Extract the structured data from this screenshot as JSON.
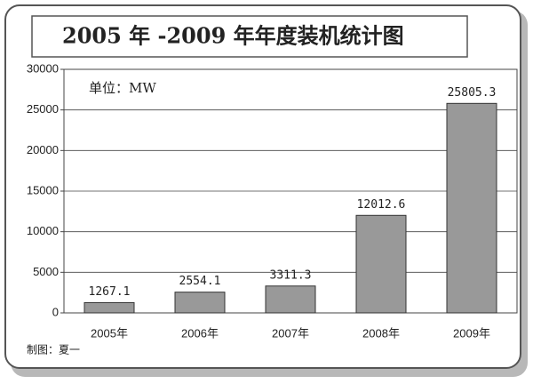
{
  "chart_data": {
    "type": "bar",
    "title": "2005 年 -2009 年年度装机统计图",
    "annotation": "单位：MW",
    "footer": "制图：夏一",
    "categories": [
      "2005年",
      "2006年",
      "2007年",
      "2008年",
      "2009年"
    ],
    "values": [
      1267.1,
      2554.1,
      3311.3,
      12012.6,
      25805.3
    ],
    "color": "#999999",
    "ylim": [
      0,
      30000
    ],
    "yticks": [
      0,
      5000,
      10000,
      15000,
      20000,
      25000,
      30000
    ],
    "grid": true
  }
}
